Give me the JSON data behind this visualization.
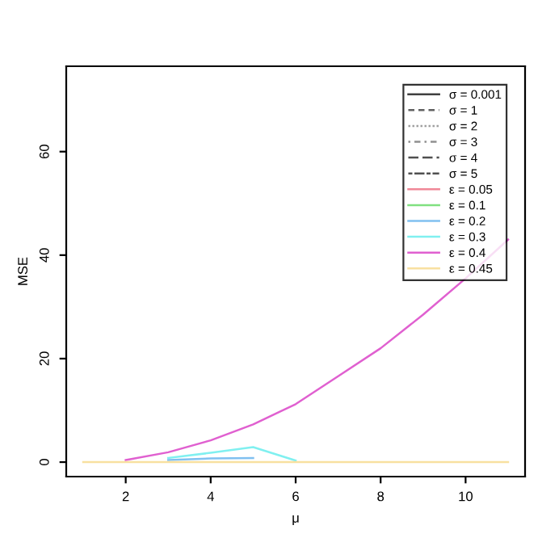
{
  "chart_data": {
    "type": "line",
    "xlabel": "μ",
    "ylabel": "MSE",
    "x": [
      1,
      2,
      3,
      4,
      5,
      6,
      7,
      8,
      9,
      10,
      11
    ],
    "xlim": [
      0.6,
      11.4
    ],
    "ylim": [
      -2.8,
      76.5
    ],
    "xticks": [
      2,
      4,
      6,
      8,
      10
    ],
    "yticks": [
      0,
      20,
      40,
      60
    ],
    "grid": false,
    "legend": "top right",
    "marker": "none",
    "series": [
      {
        "name": "σ = 0.001",
        "color": "#404040",
        "line_style": "solid",
        "values": [
          null,
          null,
          null,
          null,
          null,
          null,
          null,
          null,
          null,
          null,
          null
        ]
      },
      {
        "name": "σ = 1",
        "color": "#606060",
        "line_style": "dashed",
        "values": [
          null,
          null,
          null,
          null,
          null,
          null,
          null,
          null,
          null,
          null,
          null
        ]
      },
      {
        "name": "σ = 2",
        "color": "#a0a0a0",
        "line_style": "dotted",
        "values": [
          null,
          null,
          null,
          null,
          null,
          null,
          null,
          null,
          null,
          null,
          null
        ]
      },
      {
        "name": "σ = 3",
        "color": "#909090",
        "line_style": "dashdot",
        "values": [
          null,
          null,
          null,
          null,
          null,
          null,
          null,
          null,
          null,
          null,
          null
        ]
      },
      {
        "name": "σ = 4",
        "color": "#505050",
        "line_style": "longdash",
        "values": [
          null,
          null,
          null,
          null,
          null,
          null,
          null,
          null,
          null,
          null,
          null
        ]
      },
      {
        "name": "σ = 5",
        "color": "#505050",
        "line_style": "twodash",
        "values": [
          null,
          null,
          null,
          null,
          null,
          null,
          null,
          null,
          null,
          null,
          null
        ]
      },
      {
        "name": "ε = 0.05",
        "color": "#f08898",
        "line_style": "solid",
        "values": [
          null,
          null,
          null,
          null,
          null,
          null,
          null,
          null,
          null,
          null,
          null
        ]
      },
      {
        "name": "ε = 0.1",
        "color": "#80e080",
        "line_style": "solid",
        "values": [
          null,
          null,
          null,
          null,
          null,
          null,
          null,
          null,
          null,
          null,
          null
        ]
      },
      {
        "name": "ε = 0.2",
        "color": "#80c0f0",
        "line_style": "solid",
        "values": [
          null,
          null,
          0.4,
          0.7,
          0.8,
          null,
          null,
          null,
          null,
          null,
          null
        ]
      },
      {
        "name": "ε = 0.3",
        "color": "#80f0f0",
        "line_style": "solid",
        "values": [
          null,
          null,
          0.8,
          1.8,
          2.9,
          0.3,
          null,
          null,
          null,
          null,
          null
        ]
      },
      {
        "name": "ε = 0.4",
        "color": "#e060d0",
        "line_style": "solid",
        "values": [
          null,
          0.4,
          1.9,
          4.2,
          7.3,
          11.2,
          16.6,
          22,
          28.5,
          35.5,
          43
        ]
      },
      {
        "name": "ε = 0.45",
        "color": "#f8e0a0",
        "line_style": "solid",
        "values": [
          0,
          0,
          0,
          0,
          0,
          0,
          0,
          0,
          0,
          0,
          0
        ]
      }
    ]
  }
}
